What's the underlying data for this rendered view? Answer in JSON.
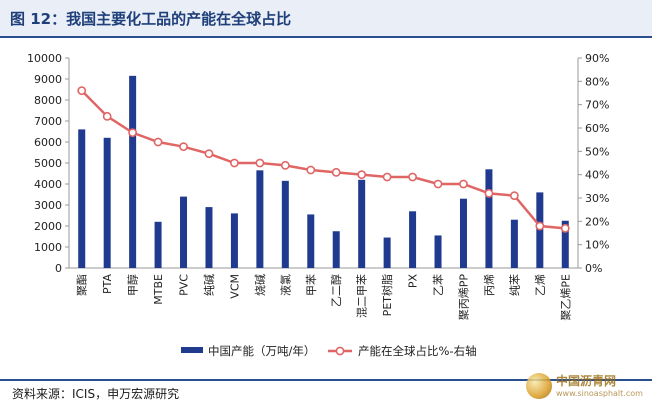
{
  "header": {
    "title": "图 12：我国主要化工品的产能在全球占比"
  },
  "source": "资料来源：ICIS，申万宏源研究",
  "watermark": {
    "main": "中国沥青网",
    "sub": "www.sinoasphalt.com"
  },
  "colors": {
    "bar": "#1f3a8f",
    "line": "#e06666",
    "line_marker_fill": "#ffffff"
  },
  "chart_data": {
    "type": "bar",
    "categories": [
      "聚酯",
      "PTA",
      "甲醇",
      "MTBE",
      "PVC",
      "纯碱",
      "VCM",
      "烧碱",
      "液氯",
      "甲苯",
      "乙二醇",
      "混二甲苯",
      "PET树脂",
      "PX",
      "乙苯",
      "聚丙烯PP",
      "丙烯",
      "纯苯",
      "乙烯",
      "聚乙烯PE"
    ],
    "series": [
      {
        "name": "中国产能（万吨/年）",
        "type": "bar",
        "axis": "left",
        "values": [
          6600,
          6200,
          9150,
          2200,
          3400,
          2900,
          2600,
          4650,
          4150,
          2550,
          1750,
          4200,
          1450,
          2700,
          1550,
          3300,
          4700,
          2300,
          3600,
          2250
        ]
      },
      {
        "name": "产能在全球占比%-右轴",
        "type": "line",
        "axis": "right",
        "values": [
          76,
          65,
          58,
          54,
          52,
          49,
          45,
          45,
          44,
          42,
          41,
          40,
          39,
          39,
          36,
          36,
          32,
          31,
          18,
          17
        ]
      }
    ],
    "y_left": {
      "min": 0,
      "max": 10000,
      "ticks": [
        "0",
        "1000",
        "2000",
        "3000",
        "4000",
        "5000",
        "6000",
        "7000",
        "8000",
        "9000",
        "10000"
      ]
    },
    "y_right": {
      "min": 0,
      "max": 90,
      "ticks": [
        "0%",
        "10%",
        "20%",
        "30%",
        "40%",
        "50%",
        "60%",
        "70%",
        "80%",
        "90%"
      ]
    },
    "legend_position": "bottom",
    "grid": false
  }
}
